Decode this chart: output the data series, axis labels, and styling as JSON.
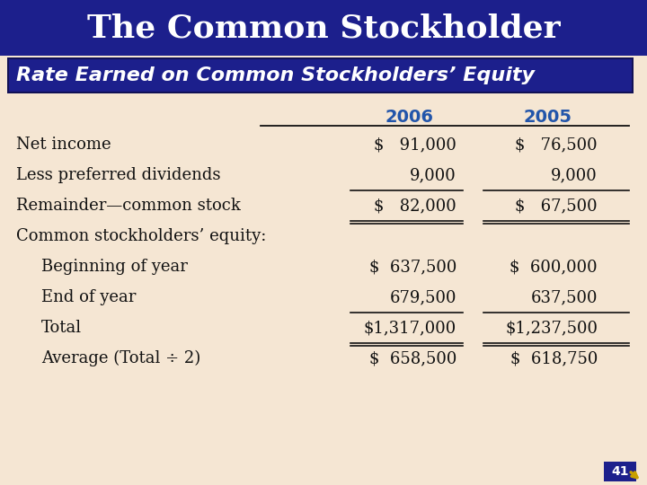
{
  "title": "The Common Stockholder",
  "subtitle": "Rate Earned on Common Stockholders’ Equity",
  "title_bg": "#1c1f8c",
  "subtitle_bg": "#1c1f8c",
  "body_bg": "#f5e6d3",
  "page_number": "41",
  "col_headers": [
    "2006",
    "2005"
  ],
  "col_header_color": "#2255aa",
  "rows": [
    {
      "label": "Net income",
      "indent": 0,
      "val2006": "$   91,000",
      "val2005": "$   76,500",
      "line_below": false,
      "dbl_below": false
    },
    {
      "label": "Less preferred dividends",
      "indent": 0,
      "val2006": "9,000",
      "val2005": "9,000",
      "line_below": true,
      "dbl_below": false
    },
    {
      "label": "Remainder—common stock",
      "indent": 0,
      "val2006": "$   82,000",
      "val2005": "$   67,500",
      "line_below": true,
      "dbl_below": true
    },
    {
      "label": "Common stockholders’ equity:",
      "indent": 0,
      "val2006": "",
      "val2005": "",
      "line_below": false,
      "dbl_below": false
    },
    {
      "label": "Beginning of year",
      "indent": 1,
      "val2006": "$  637,500",
      "val2005": "$  600,000",
      "line_below": false,
      "dbl_below": false
    },
    {
      "label": "End of year",
      "indent": 1,
      "val2006": "679,500",
      "val2005": "637,500",
      "line_below": true,
      "dbl_below": false
    },
    {
      "label": "Total",
      "indent": 1,
      "val2006": "$1,317,000",
      "val2005": "$1,237,500",
      "line_below": true,
      "dbl_below": true
    },
    {
      "label": "Average (Total ÷ 2)",
      "indent": 1,
      "val2006": "$  658,500",
      "val2005": "$  618,750",
      "line_below": false,
      "dbl_below": false
    }
  ],
  "text_color": "#111111",
  "font_size_title": 26,
  "font_size_subtitle": 16,
  "font_size_header": 13,
  "font_size_data": 13
}
